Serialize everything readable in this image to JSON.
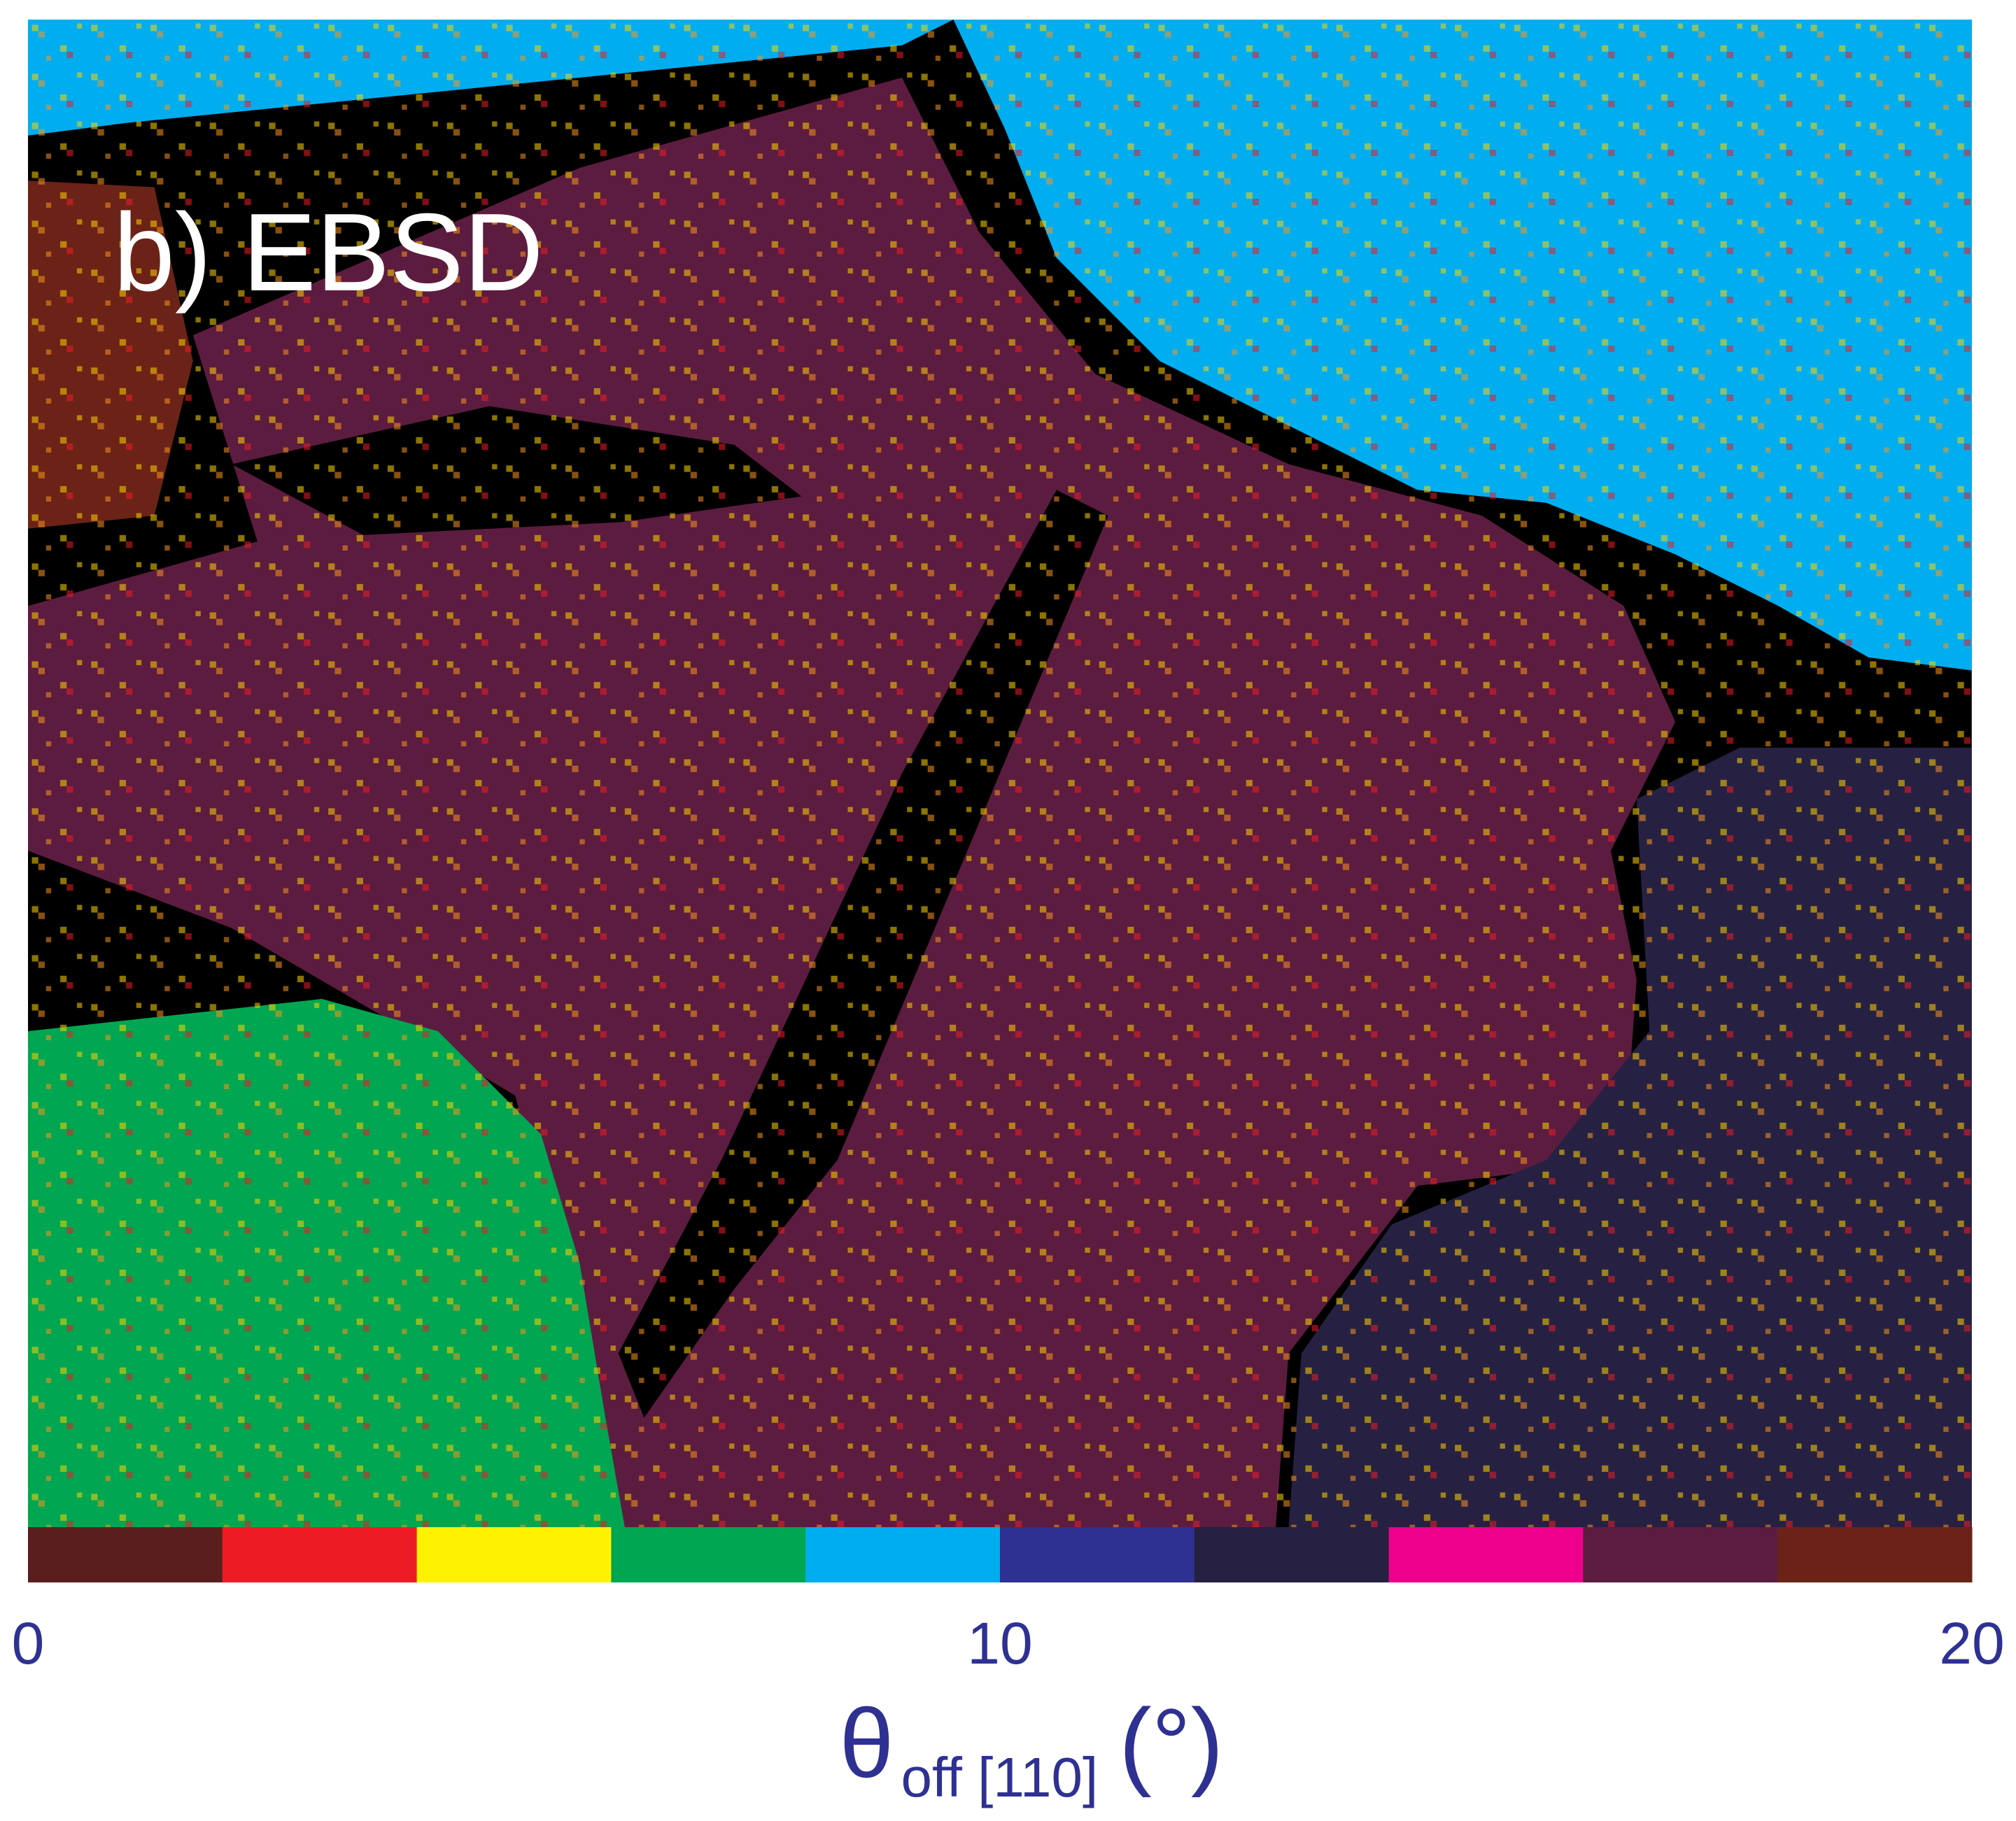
{
  "chart_data": {
    "type": "colorbar",
    "title": "b) EBSD",
    "x_label": {
      "symbol": "θ",
      "subscript": "off [110]",
      "unit": "(°)"
    },
    "bins": [
      0,
      2,
      4,
      6,
      8,
      10,
      12,
      14,
      16,
      18,
      20
    ],
    "colors": [
      "#5a1e1e",
      "#ed1c24",
      "#fff200",
      "#00a651",
      "#00aeef",
      "#2e3192",
      "#262142",
      "#ec008c",
      "#5c1c3f",
      "#6b2318"
    ],
    "xlim": [
      0,
      20
    ],
    "xticks": [
      0,
      10,
      20
    ]
  }
}
